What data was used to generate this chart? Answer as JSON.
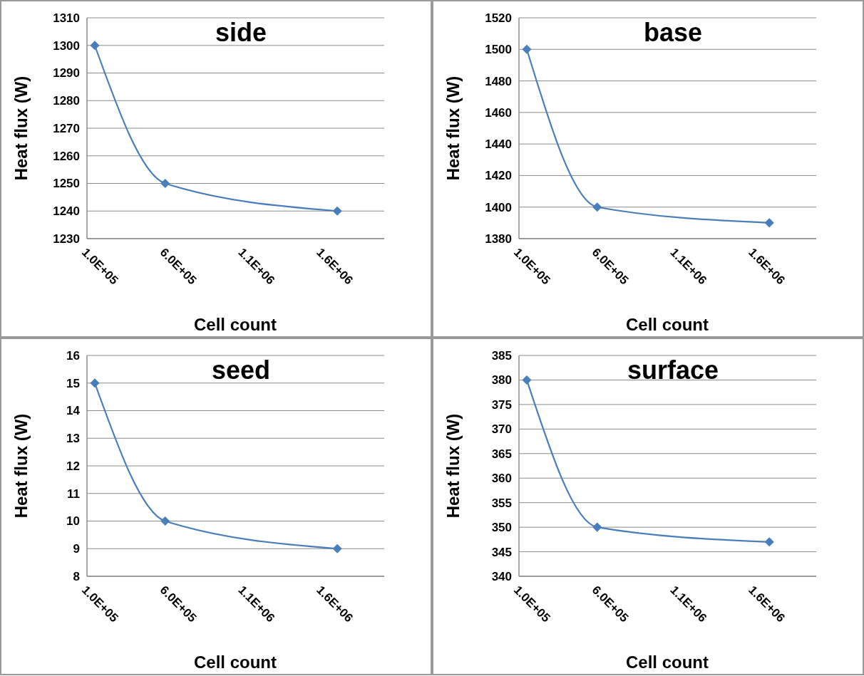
{
  "chart_data": [
    {
      "type": "line",
      "title": "side",
      "xlabel": "Cell count",
      "ylabel": "Heat flux (W)",
      "x": [
        150000,
        600000,
        1700000
      ],
      "series": [
        {
          "color": "#4a7ebb",
          "values": [
            1300,
            1250,
            1240
          ]
        }
      ],
      "xlim": [
        100000,
        2000000
      ],
      "xticks": [
        {
          "value": 100000,
          "label": "1.0E+05"
        },
        {
          "value": 600000,
          "label": "6.0E+05"
        },
        {
          "value": 1100000,
          "label": "1.1E+06"
        },
        {
          "value": 1600000,
          "label": "1.6E+06"
        }
      ],
      "ylim": [
        1230,
        1310
      ],
      "yticks": [
        1230,
        1240,
        1250,
        1260,
        1270,
        1280,
        1290,
        1300,
        1310
      ],
      "grid": "y",
      "marker": "diamond"
    },
    {
      "type": "line",
      "title": "base",
      "xlabel": "Cell count",
      "ylabel": "Heat flux (W)",
      "x": [
        150000,
        600000,
        1700000
      ],
      "series": [
        {
          "color": "#4a7ebb",
          "values": [
            1500,
            1400,
            1390
          ]
        }
      ],
      "xlim": [
        100000,
        2000000
      ],
      "xticks": [
        {
          "value": 100000,
          "label": "1.0E+05"
        },
        {
          "value": 600000,
          "label": "6.0E+05"
        },
        {
          "value": 1100000,
          "label": "1.1E+06"
        },
        {
          "value": 1600000,
          "label": "1.6E+06"
        }
      ],
      "ylim": [
        1380,
        1520
      ],
      "yticks": [
        1380,
        1400,
        1420,
        1440,
        1460,
        1480,
        1500,
        1520
      ],
      "grid": "y",
      "marker": "diamond"
    },
    {
      "type": "line",
      "title": "seed",
      "xlabel": "Cell count",
      "ylabel": "Heat flux (W)",
      "x": [
        150000,
        600000,
        1700000
      ],
      "series": [
        {
          "color": "#4a7ebb",
          "values": [
            15,
            10,
            9
          ]
        }
      ],
      "xlim": [
        100000,
        2000000
      ],
      "xticks": [
        {
          "value": 100000,
          "label": "1.0E+05"
        },
        {
          "value": 600000,
          "label": "6.0E+05"
        },
        {
          "value": 1100000,
          "label": "1.1E+06"
        },
        {
          "value": 1600000,
          "label": "1.6E+06"
        }
      ],
      "ylim": [
        8,
        16
      ],
      "yticks": [
        8,
        9,
        10,
        11,
        12,
        13,
        14,
        15,
        16
      ],
      "grid": "y",
      "marker": "diamond"
    },
    {
      "type": "line",
      "title": "surface",
      "xlabel": "Cell count",
      "ylabel": "Heat flux (W)",
      "x": [
        150000,
        600000,
        1700000
      ],
      "series": [
        {
          "color": "#4a7ebb",
          "values": [
            380,
            350,
            347
          ]
        }
      ],
      "xlim": [
        100000,
        2000000
      ],
      "xticks": [
        {
          "value": 100000,
          "label": "1.0E+05"
        },
        {
          "value": 600000,
          "label": "6.0E+05"
        },
        {
          "value": 1100000,
          "label": "1.1E+06"
        },
        {
          "value": 1600000,
          "label": "1.6E+06"
        }
      ],
      "ylim": [
        340,
        385
      ],
      "yticks": [
        340,
        345,
        350,
        355,
        360,
        365,
        370,
        375,
        380,
        385
      ],
      "grid": "y",
      "marker": "diamond"
    }
  ]
}
